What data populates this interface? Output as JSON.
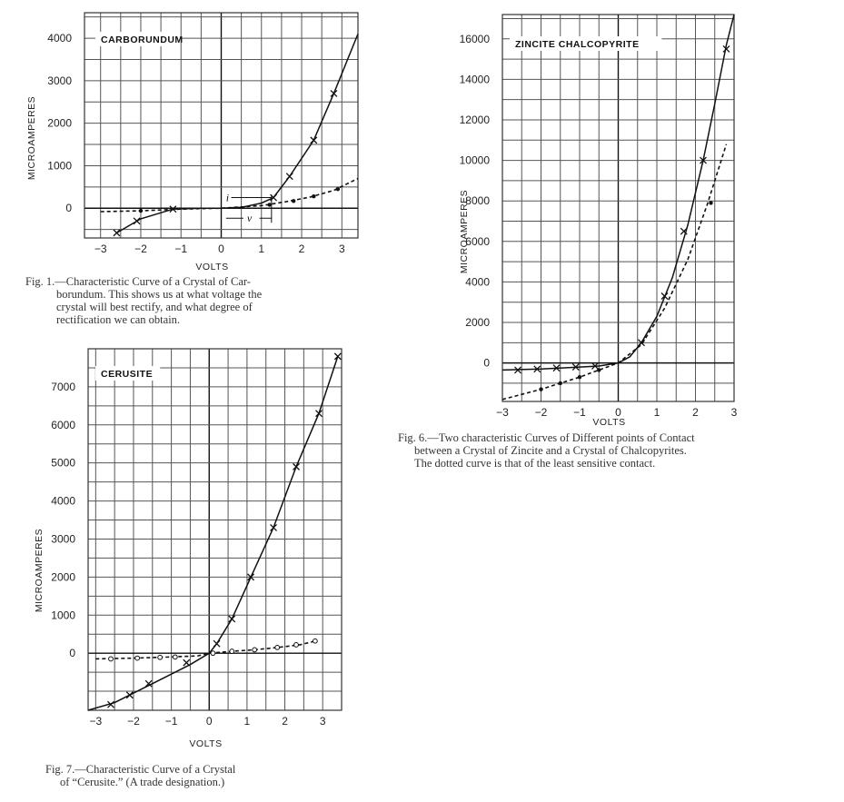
{
  "chart_data": [
    {
      "id": "fig1",
      "type": "line",
      "title": "CARBORUNDUM",
      "xlabel": "VOLTS",
      "ylabel": "MICROAMPERES",
      "xlim": [
        -3.4,
        3.4
      ],
      "ylim": [
        -700,
        4600
      ],
      "x_gridlines": [
        -3,
        -2.5,
        -2,
        -1.5,
        -1,
        -0.5,
        0,
        0.5,
        1,
        1.5,
        2,
        2.5,
        3
      ],
      "y_gridlines": [
        -500,
        0,
        500,
        1000,
        1500,
        2000,
        2500,
        3000,
        3500,
        4000,
        4500
      ],
      "x_ticks": [
        {
          "v": -3,
          "label": "−3"
        },
        {
          "v": -2,
          "label": "−2"
        },
        {
          "v": -1,
          "label": "−1"
        },
        {
          "v": 0,
          "label": "0"
        },
        {
          "v": 1,
          "label": "1"
        },
        {
          "v": 2,
          "label": "2"
        },
        {
          "v": 3,
          "label": "3"
        }
      ],
      "y_ticks": [
        {
          "v": 0,
          "label": "0"
        },
        {
          "v": 1000,
          "label": "1000"
        },
        {
          "v": 2000,
          "label": "2000"
        },
        {
          "v": 3000,
          "label": "3000"
        },
        {
          "v": 4000,
          "label": "4000"
        }
      ],
      "annotations": [
        "i",
        "v"
      ],
      "series": [
        {
          "style": "solid",
          "marker": "cross",
          "x": [
            -2.6,
            -2.0,
            -1.2,
            -0.5,
            0,
            0.5,
            1.0,
            1.3,
            1.7,
            2.3,
            2.8,
            3.4
          ],
          "y": [
            -580,
            -250,
            -20,
            0,
            0,
            20,
            120,
            250,
            750,
            1600,
            2700,
            4100
          ],
          "markers": [
            [
              -2.6,
              -580
            ],
            [
              -2.1,
              -300
            ],
            [
              -1.2,
              -20
            ],
            [
              1.3,
              250
            ],
            [
              1.7,
              750
            ],
            [
              2.3,
              1600
            ],
            [
              2.8,
              2700
            ]
          ]
        },
        {
          "style": "dotted",
          "marker": "dot",
          "x": [
            -3.0,
            -2.0,
            -1.0,
            0,
            1.0,
            1.6,
            2.2,
            2.8,
            3.4
          ],
          "y": [
            -80,
            -60,
            -20,
            0,
            60,
            150,
            260,
            420,
            700
          ],
          "markers": [
            [
              -2.0,
              -60
            ],
            [
              1.2,
              80
            ],
            [
              1.8,
              170
            ],
            [
              2.3,
              280
            ],
            [
              2.9,
              450
            ]
          ]
        }
      ]
    },
    {
      "id": "fig6",
      "type": "line",
      "title": "ZINCITE  CHALCOPYRITE",
      "xlabel": "VOLTS",
      "ylabel": "MICROAMPERES",
      "xlim": [
        -3,
        3
      ],
      "ylim": [
        -1900,
        17200
      ],
      "x_gridlines": [
        -3,
        -2.5,
        -2,
        -1.5,
        -1,
        -0.5,
        0,
        0.5,
        1,
        1.5,
        2,
        2.5,
        3
      ],
      "y_gridlines": [
        -1000,
        0,
        1000,
        2000,
        3000,
        4000,
        5000,
        6000,
        7000,
        8000,
        9000,
        10000,
        11000,
        12000,
        13000,
        14000,
        15000,
        16000,
        17000
      ],
      "x_ticks": [
        {
          "v": -3,
          "label": "−3"
        },
        {
          "v": -2,
          "label": "−2"
        },
        {
          "v": -1,
          "label": "−1"
        },
        {
          "v": 0,
          "label": "0"
        },
        {
          "v": 1,
          "label": "1"
        },
        {
          "v": 2,
          "label": "2"
        },
        {
          "v": 3,
          "label": "3"
        }
      ],
      "y_ticks": [
        {
          "v": 0,
          "label": "0"
        },
        {
          "v": 2000,
          "label": "2000"
        },
        {
          "v": 4000,
          "label": "4000"
        },
        {
          "v": 6000,
          "label": "6000"
        },
        {
          "v": 8000,
          "label": "8000"
        },
        {
          "v": 10000,
          "label": "10000"
        },
        {
          "v": 12000,
          "label": "12000"
        },
        {
          "v": 14000,
          "label": "14000"
        },
        {
          "v": 16000,
          "label": "16000"
        }
      ],
      "series": [
        {
          "style": "solid",
          "marker": "cross",
          "x": [
            -3.0,
            -2.0,
            -1.0,
            -0.5,
            0,
            0.3,
            0.6,
            1.0,
            1.4,
            1.8,
            2.2,
            2.5,
            2.8,
            3.0
          ],
          "y": [
            -350,
            -300,
            -200,
            -150,
            0,
            300,
            1000,
            2300,
            4200,
            6800,
            10000,
            12800,
            15700,
            17200
          ],
          "markers": [
            [
              -2.6,
              -350
            ],
            [
              -2.1,
              -300
            ],
            [
              -1.6,
              -250
            ],
            [
              -1.1,
              -200
            ],
            [
              -0.6,
              -150
            ],
            [
              0.6,
              1000
            ],
            [
              1.2,
              3300
            ],
            [
              1.7,
              6500
            ],
            [
              2.2,
              10000
            ],
            [
              2.8,
              15500
            ]
          ]
        },
        {
          "style": "dotted",
          "marker": "dot",
          "x": [
            -3.0,
            -2.0,
            -1.0,
            0,
            0.6,
            1.2,
            1.8,
            2.3,
            2.8
          ],
          "y": [
            -1800,
            -1300,
            -700,
            0,
            900,
            2700,
            5100,
            7800,
            10800
          ],
          "markers": [
            [
              -2.0,
              -1300
            ],
            [
              -1.5,
              -1000
            ],
            [
              -1.0,
              -700
            ],
            [
              -0.5,
              -350
            ],
            [
              2.4,
              7900
            ]
          ]
        }
      ]
    },
    {
      "id": "fig7",
      "type": "line",
      "title": "CERUSITE",
      "xlabel": "VOLTS",
      "ylabel": "MICROAMPERES",
      "xlim": [
        -3.2,
        3.5
      ],
      "ylim": [
        -1500,
        8000
      ],
      "x_gridlines": [
        -3,
        -2.5,
        -2,
        -1.5,
        -1,
        -0.5,
        0,
        0.5,
        1,
        1.5,
        2,
        2.5,
        3,
        3.5
      ],
      "y_gridlines": [
        -1000,
        -500,
        0,
        500,
        1000,
        1500,
        2000,
        2500,
        3000,
        3500,
        4000,
        4500,
        5000,
        5500,
        6000,
        6500,
        7000,
        7500
      ],
      "x_ticks": [
        {
          "v": -3,
          "label": "−3"
        },
        {
          "v": -2,
          "label": "−2"
        },
        {
          "v": -1,
          "label": "−1"
        },
        {
          "v": 0,
          "label": "0"
        },
        {
          "v": 1,
          "label": "1"
        },
        {
          "v": 2,
          "label": "2"
        },
        {
          "v": 3,
          "label": "3"
        }
      ],
      "y_ticks": [
        {
          "v": 0,
          "label": "0"
        },
        {
          "v": 1000,
          "label": "1000"
        },
        {
          "v": 2000,
          "label": "2000"
        },
        {
          "v": 3000,
          "label": "3000"
        },
        {
          "v": 4000,
          "label": "4000"
        },
        {
          "v": 5000,
          "label": "5000"
        },
        {
          "v": 6000,
          "label": "6000"
        },
        {
          "v": 7000,
          "label": "7000"
        }
      ],
      "series": [
        {
          "style": "solid",
          "marker": "cross",
          "x": [
            -3.2,
            -2.5,
            -2.0,
            -1.5,
            -1.0,
            -0.5,
            0,
            0.2,
            0.6,
            1.1,
            1.7,
            2.3,
            2.9,
            3.4
          ],
          "y": [
            -1500,
            -1300,
            -1050,
            -800,
            -550,
            -300,
            0,
            250,
            900,
            2000,
            3300,
            4900,
            6300,
            7800
          ],
          "markers": [
            [
              -2.6,
              -1350
            ],
            [
              -2.1,
              -1100
            ],
            [
              -1.6,
              -800
            ],
            [
              -0.6,
              -250
            ],
            [
              0.2,
              250
            ],
            [
              0.6,
              900
            ],
            [
              1.1,
              2000
            ],
            [
              1.7,
              3300
            ],
            [
              2.3,
              4900
            ],
            [
              2.9,
              6300
            ],
            [
              3.4,
              7800
            ]
          ]
        },
        {
          "style": "dotted",
          "marker": "ring",
          "x": [
            -3.0,
            -2.0,
            -1.0,
            -0.3,
            0,
            0.6,
            1.2,
            1.8,
            2.4,
            2.8
          ],
          "y": [
            -150,
            -130,
            -100,
            -70,
            0,
            50,
            90,
            150,
            220,
            320
          ],
          "markers": [
            [
              -2.6,
              -150
            ],
            [
              -1.9,
              -130
            ],
            [
              -1.3,
              -110
            ],
            [
              -0.9,
              -100
            ],
            [
              0.1,
              0
            ],
            [
              0.6,
              50
            ],
            [
              1.2,
              90
            ],
            [
              1.8,
              150
            ],
            [
              2.3,
              220
            ],
            [
              2.8,
              320
            ]
          ]
        }
      ]
    }
  ],
  "captions": {
    "fig1": [
      "Fig. 1.—Characteristic Curve of a Crystal of Car-",
      "borundum.  This shows us at what voltage the",
      "crystal will best rectify, and what degree of",
      "rectification we can obtain."
    ],
    "fig6": [
      "Fig. 6.—Two characteristic Curves of Different points of Contact",
      "between a Crystal of Zincite and a Crystal of Chalcopyrites.",
      "The dotted curve is that of the least sensitive contact."
    ],
    "fig7": [
      "Fig. 7.—Characteristic Curve of a Crystal",
      "of “Cerusite.”  (A trade designation.)"
    ]
  }
}
